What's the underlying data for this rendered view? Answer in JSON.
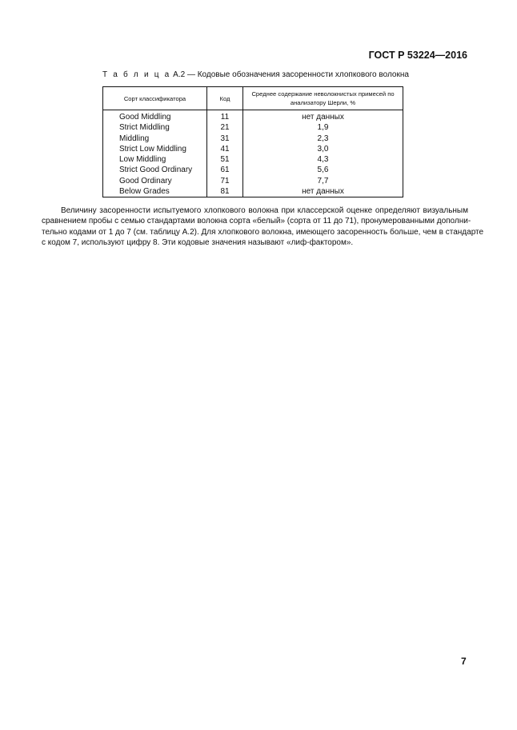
{
  "header": {
    "doc_id": "ГОСТ Р 53224—2016"
  },
  "table": {
    "caption_prefix": "Т а б л и ц а",
    "caption_rest": " А.2 — Кодовые обозначения засоренности хлопкового волокна",
    "columns": [
      "Сорт классификатора",
      "Код",
      "Среднее содержание неволокнистых примесей по анализатору Шерли, %"
    ],
    "rows": [
      {
        "grade": "Good  Middling",
        "code": "11",
        "value": "нет данных"
      },
      {
        "grade": "Strict  Middling",
        "code": "21",
        "value": "1,9"
      },
      {
        "grade": "Middling",
        "code": "31",
        "value": "2,3"
      },
      {
        "grade": "Strict Low  Middling",
        "code": "41",
        "value": "3,0"
      },
      {
        "grade": "Low Middling",
        "code": "51",
        "value": "4,3"
      },
      {
        "grade": "Strict Good Ordinary",
        "code": "61",
        "value": "5,6"
      },
      {
        "grade": "Good Ordinary",
        "code": "71",
        "value": "7,7"
      },
      {
        "grade": "Below Grades",
        "code": "81",
        "value": "нет данных"
      }
    ]
  },
  "paragraph": {
    "lines": [
      "Величину засоренности испытуемого хлопкового волокна при классерской оценке определяют визуальным",
      "сравнением пробы с семью стандартами волокна сорта «белый» (сорта от 11 до 71), пронумерованными дополни-",
      "тельно кодами от 1 до 7 (см. таблицу А.2). Для хлопкового волокна, имеющего засоренность больше, чем в стандарте",
      "с кодом 7, используют цифру 8. Эти кодовые значения называют «лиф-фактором»."
    ]
  },
  "footer": {
    "page_number": "7"
  }
}
